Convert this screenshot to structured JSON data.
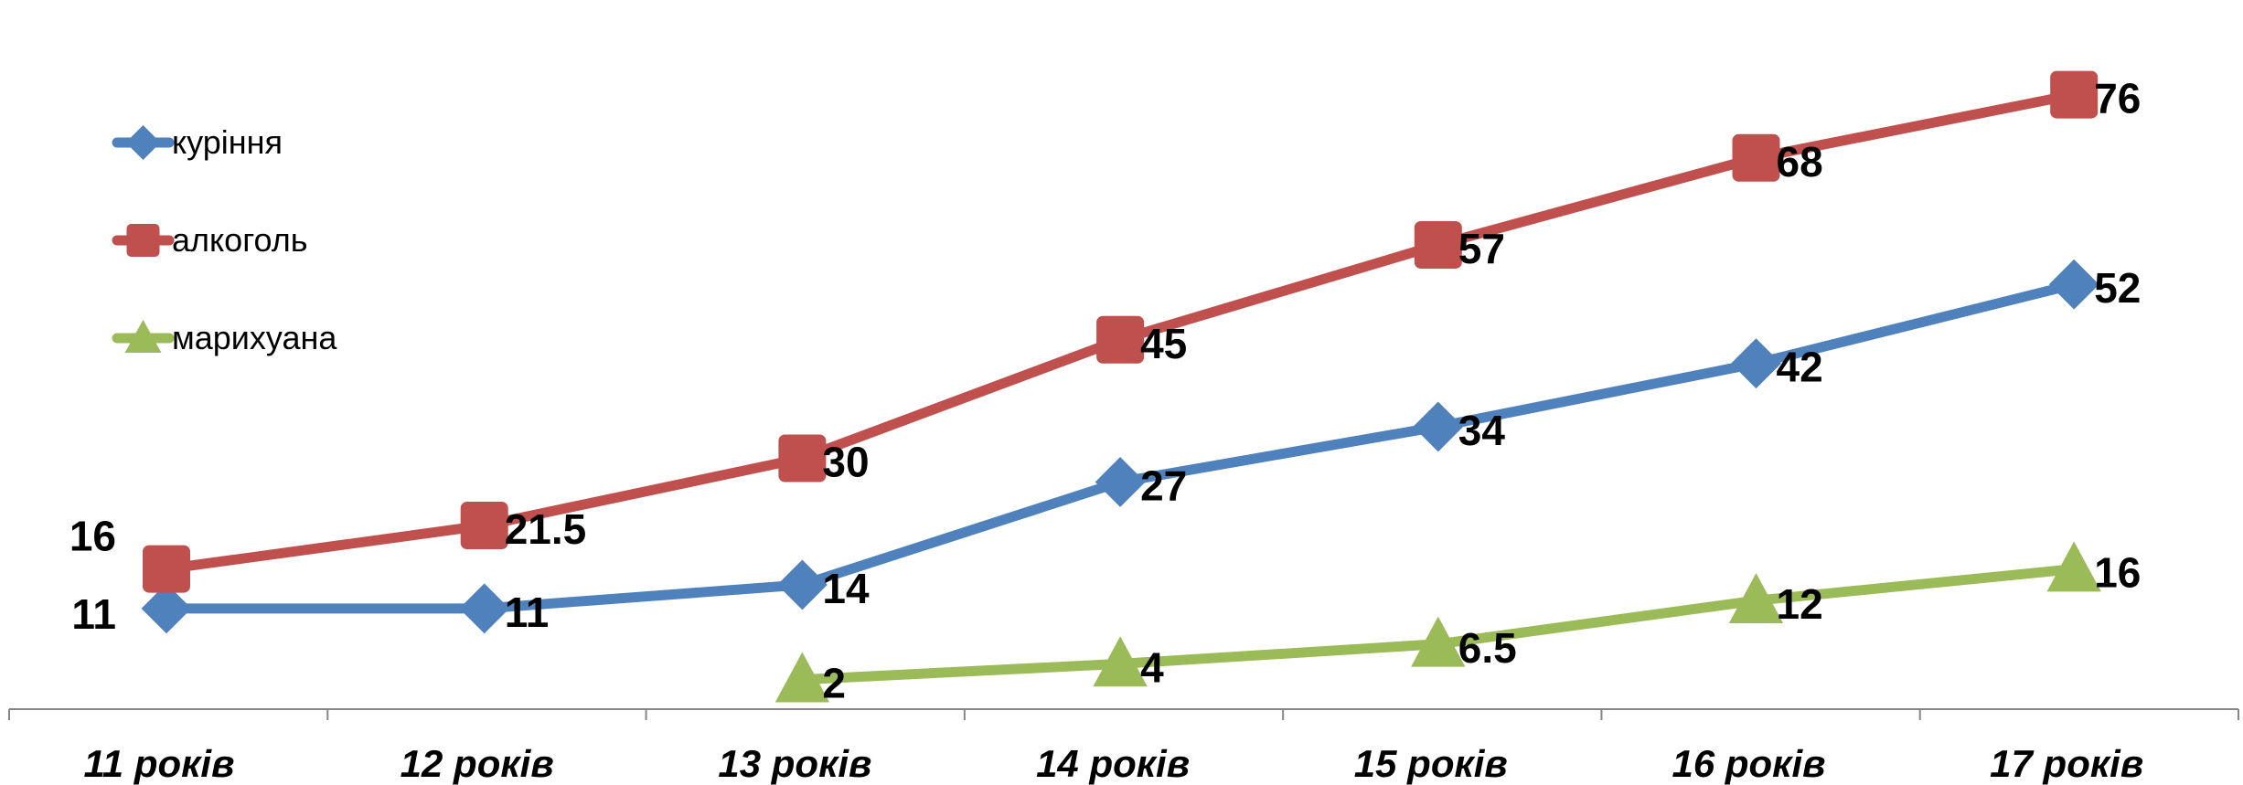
{
  "chart_data": {
    "type": "line",
    "title": "",
    "xlabel": "",
    "ylabel": "",
    "categories": [
      "11 років",
      "12 років",
      "13 років",
      "14 років",
      "15 років",
      "16 років",
      "17 років"
    ],
    "ylim": [
      0,
      80
    ],
    "grid": false,
    "legend_position": "top-left",
    "series": [
      {
        "name": "куріння",
        "color": "#4F81BD",
        "marker": "diamond",
        "values": [
          11,
          11,
          14,
          27,
          34,
          42,
          52
        ],
        "labels": [
          "11",
          "11",
          "14",
          "27",
          "34",
          "42",
          "52"
        ]
      },
      {
        "name": "алкоголь",
        "color": "#C0504D",
        "marker": "square",
        "values": [
          16,
          21.5,
          30,
          45,
          57,
          68,
          76
        ],
        "labels": [
          "16",
          "21.5",
          "30",
          "45",
          "57",
          "68",
          "76"
        ]
      },
      {
        "name": "марихуана",
        "color": "#9BBB59",
        "marker": "triangle",
        "values": [
          null,
          null,
          2,
          4,
          6.5,
          12,
          16
        ],
        "labels": [
          null,
          null,
          "2",
          "4",
          "6.5",
          "12",
          "16"
        ]
      }
    ]
  }
}
